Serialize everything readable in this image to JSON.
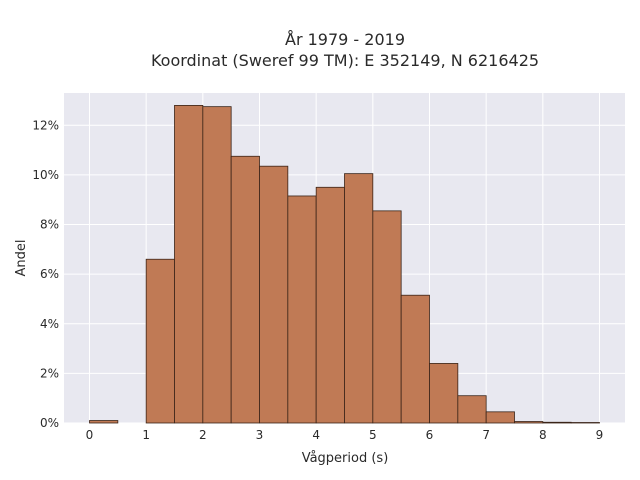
{
  "chart_data": {
    "type": "bar",
    "title_line1": "År 1979 - 2019",
    "title_line2": "Koordinat (Sweref 99 TM): E 352149, N 6216425",
    "xlabel": "Vågperiod (s)",
    "ylabel": "Andel",
    "bin_width": 0.5,
    "bins": [
      {
        "start": 0.0,
        "value": 0.1
      },
      {
        "start": 1.0,
        "value": 6.6
      },
      {
        "start": 1.5,
        "value": 12.8
      },
      {
        "start": 2.0,
        "value": 12.75
      },
      {
        "start": 2.5,
        "value": 10.75
      },
      {
        "start": 3.0,
        "value": 10.35
      },
      {
        "start": 3.5,
        "value": 9.15
      },
      {
        "start": 4.0,
        "value": 9.5
      },
      {
        "start": 4.5,
        "value": 10.05
      },
      {
        "start": 5.0,
        "value": 8.55
      },
      {
        "start": 5.5,
        "value": 5.15
      },
      {
        "start": 6.0,
        "value": 2.4
      },
      {
        "start": 6.5,
        "value": 1.1
      },
      {
        "start": 7.0,
        "value": 0.45
      },
      {
        "start": 7.5,
        "value": 0.06
      },
      {
        "start": 8.0,
        "value": 0.03
      },
      {
        "start": 8.5,
        "value": 0.02
      }
    ],
    "xlim": [
      -0.45,
      9.45
    ],
    "ylim": [
      0,
      13.3
    ],
    "x_ticks": [
      0,
      1,
      2,
      3,
      4,
      5,
      6,
      7,
      8,
      9
    ],
    "y_ticks": [
      0,
      2,
      4,
      6,
      8,
      10,
      12
    ],
    "y_tick_labels": [
      "0%",
      "2%",
      "4%",
      "6%",
      "8%",
      "10%",
      "12%"
    ],
    "grid": true,
    "colors": {
      "bar_fill": "#c07a55",
      "bar_stroke": "#3a2418",
      "plot_bg": "#e8e8f0",
      "grid": "#ffffff"
    }
  }
}
